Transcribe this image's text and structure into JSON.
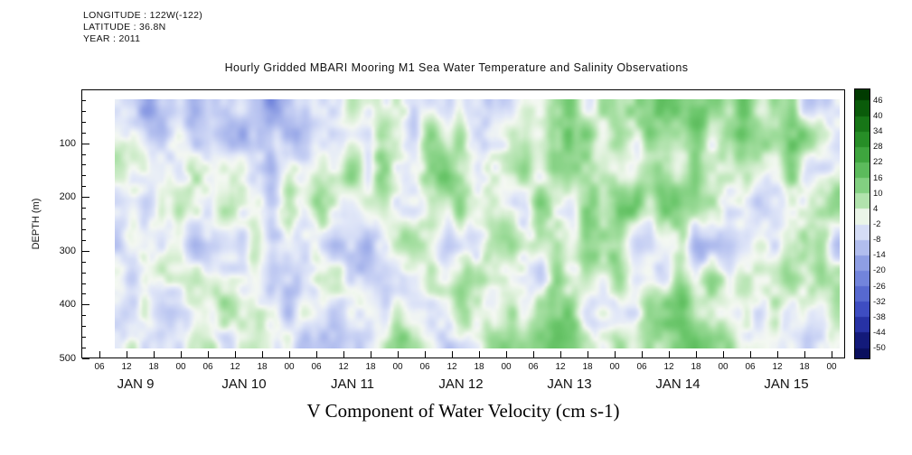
{
  "meta": {
    "longitude": "LONGITUDE : 122W(-122)",
    "latitude": "LATITUDE : 36.8N",
    "year": "YEAR : 2011"
  },
  "title": "Hourly Gridded MBARI Mooring M1 Sea Water Temperature and Salinity Observations",
  "caption": "V Component of Water Velocity (cm s-1)",
  "chart_data": {
    "type": "heatmap",
    "title": "Hourly Gridded MBARI Mooring M1 Sea Water Temperature and Salinity Observations",
    "units": "cm s-1",
    "ylabel": "DEPTH (m)",
    "y_ticks": [
      100,
      200,
      300,
      400,
      500
    ],
    "y_minor_step": 20,
    "y_range": [
      0,
      500
    ],
    "x_tick_labels": [
      "06",
      "12",
      "18",
      "00",
      "06",
      "12",
      "18",
      "00",
      "06",
      "12",
      "18",
      "00",
      "06",
      "12",
      "18",
      "00",
      "06",
      "12",
      "18",
      "00",
      "06",
      "12",
      "18",
      "00",
      "06",
      "12",
      "18",
      "00"
    ],
    "day_labels": [
      "JAN 9",
      "JAN 10",
      "JAN 11",
      "JAN 12",
      "JAN 13",
      "JAN 14",
      "JAN 15"
    ],
    "value_range": [
      -50,
      46
    ],
    "colorbar": {
      "levels": [
        46,
        40,
        34,
        28,
        22,
        16,
        10,
        4,
        -2,
        -8,
        -14,
        -20,
        -26,
        -32,
        -38,
        -44,
        -50
      ],
      "band_size": 6,
      "palette": [
        {
          "v": 50,
          "c": "#003600"
        },
        {
          "v": 40,
          "c": "#0f6b0f"
        },
        {
          "v": 28,
          "c": "#2f9a2f"
        },
        {
          "v": 16,
          "c": "#6cc76c"
        },
        {
          "v": 8,
          "c": "#a8e0a4"
        },
        {
          "v": 3,
          "c": "#d8efd4"
        },
        {
          "v": 0,
          "c": "#f4f8f2"
        },
        {
          "v": -3,
          "c": "#e2e8f8"
        },
        {
          "v": -8,
          "c": "#c3cdf3"
        },
        {
          "v": -16,
          "c": "#93a3e6"
        },
        {
          "v": -26,
          "c": "#6478d8"
        },
        {
          "v": -36,
          "c": "#3a49c0"
        },
        {
          "v": -44,
          "c": "#1c2596"
        },
        {
          "v": -50,
          "c": "#0a0f5e"
        }
      ]
    },
    "field_summary": "Mottled time-depth field of alternating positive (green) and negative (blue) velocity streaks, mostly between -20 and +25 cm/s; strongest negative (blue) band in the upper ~100 m on JAN 9-10, strongest positive (green) patches in the upper 150 m on JAN 13-14, vertical streak structure throughout."
  }
}
